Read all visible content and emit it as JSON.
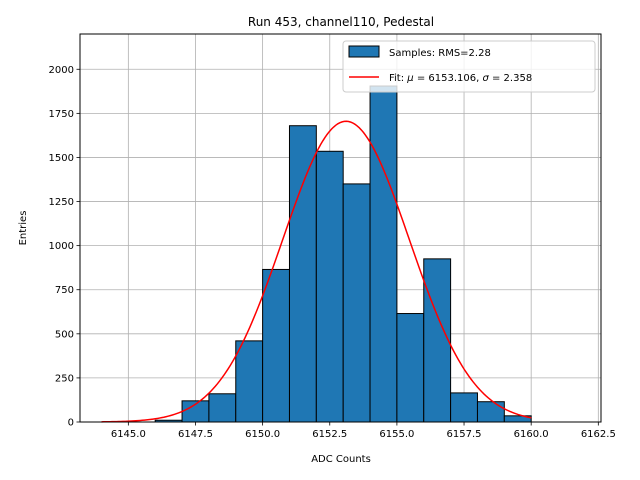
{
  "chart_data": {
    "type": "histogram",
    "title": "Run 453, channel110, Pedestal",
    "xlabel": "ADC Counts",
    "ylabel": "Entries",
    "xlim": [
      6143.2,
      6162.6
    ],
    "ylim": [
      0,
      2200
    ],
    "xticks": [
      6145.0,
      6147.5,
      6150.0,
      6152.5,
      6155.0,
      6157.5,
      6160.0,
      6162.5
    ],
    "xtick_labels": [
      "6145.0",
      "6147.5",
      "6150.0",
      "6152.5",
      "6155.0",
      "6157.5",
      "6160.0",
      "6162.5"
    ],
    "yticks": [
      0,
      250,
      500,
      750,
      1000,
      1250,
      1500,
      1750,
      2000
    ],
    "ytick_labels": [
      "0",
      "250",
      "500",
      "750",
      "1000",
      "1250",
      "1500",
      "1750",
      "2000"
    ],
    "grid": true,
    "legend_position": "top-right",
    "series": [
      {
        "name": "Samples: RMS=2.28",
        "kind": "bars",
        "color": "#1f77b4",
        "edgecolor": "#000000",
        "bin_edges": [
          6146.0,
          6147.0,
          6148.0,
          6149.0,
          6150.0,
          6151.0,
          6152.0,
          6153.0,
          6154.0,
          6155.0,
          6156.0,
          6157.0,
          6158.0,
          6159.0,
          6160.0
        ],
        "counts": [
          10,
          120,
          160,
          460,
          865,
          1680,
          1535,
          1350,
          1905,
          615,
          925,
          165,
          115,
          35
        ]
      },
      {
        "name": "Fit: μ = 6153.106, σ = 2.358",
        "name_parts": {
          "prefix": "Fit: ",
          "mu": "μ",
          "mu_val": " = 6153.106, ",
          "sigma": "σ",
          "sigma_val": " = 2.358"
        },
        "kind": "gaussian",
        "color": "#ff0000",
        "mu": 6153.106,
        "sigma": 2.358,
        "amplitude": 1705,
        "x_range": [
          6144.0,
          6160.0
        ]
      }
    ]
  }
}
